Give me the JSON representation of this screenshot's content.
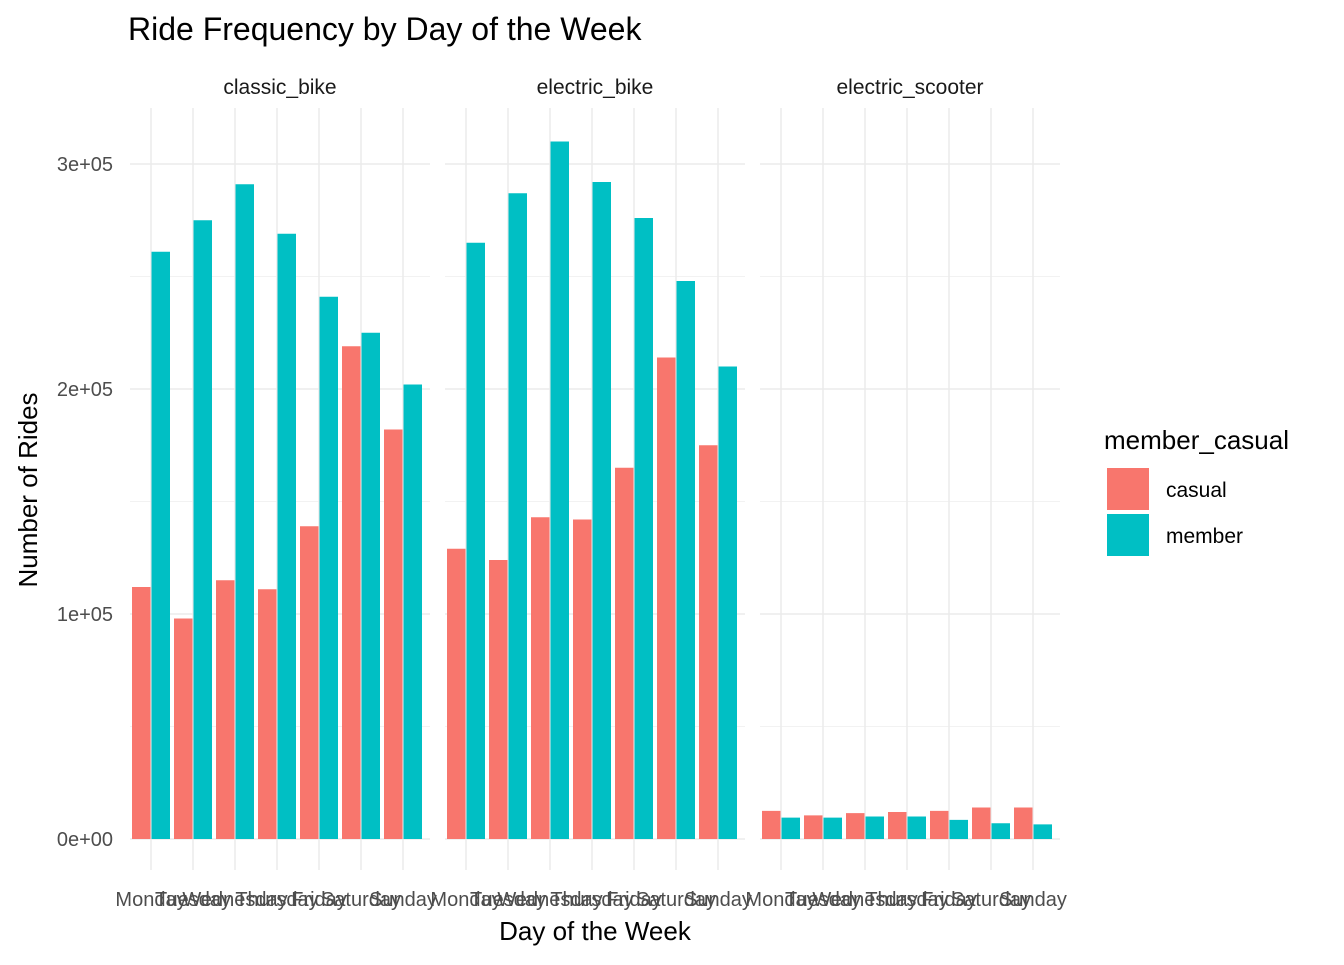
{
  "chart_data": {
    "type": "bar",
    "title": "Ride Frequency by Day of the Week",
    "xlabel": "Day of the Week",
    "ylabel": "Number of Rides",
    "ylim": [
      0,
      325000
    ],
    "y_ticks": [
      0,
      100000,
      200000,
      300000
    ],
    "y_tick_labels": [
      "0e+00",
      "1e+05",
      "2e+05",
      "3e+05"
    ],
    "categories": [
      "Monday",
      "Tuesday",
      "Wednesday",
      "Thursday",
      "Friday",
      "Saturday",
      "Sunday"
    ],
    "grid": true,
    "legend": {
      "title": "member_casual",
      "position": "right",
      "entries": [
        {
          "name": "casual",
          "color": "#F8766D"
        },
        {
          "name": "member",
          "color": "#00BFC4"
        }
      ]
    },
    "facets": [
      {
        "name": "classic_bike",
        "series": [
          {
            "name": "casual",
            "values": [
              112000,
              98000,
              115000,
              111000,
              139000,
              219000,
              182000
            ]
          },
          {
            "name": "member",
            "values": [
              261000,
              275000,
              291000,
              269000,
              241000,
              225000,
              202000
            ]
          }
        ]
      },
      {
        "name": "electric_bike",
        "series": [
          {
            "name": "casual",
            "values": [
              129000,
              124000,
              143000,
              142000,
              165000,
              214000,
              175000
            ]
          },
          {
            "name": "member",
            "values": [
              265000,
              287000,
              310000,
              292000,
              276000,
              248000,
              210000
            ]
          }
        ]
      },
      {
        "name": "electric_scooter",
        "series": [
          {
            "name": "casual",
            "values": [
              12500,
              10500,
              11500,
              12000,
              12500,
              14000,
              14000
            ]
          },
          {
            "name": "member",
            "values": [
              9500,
              9500,
              10000,
              10000,
              8500,
              7000,
              6500
            ]
          }
        ]
      }
    ]
  }
}
